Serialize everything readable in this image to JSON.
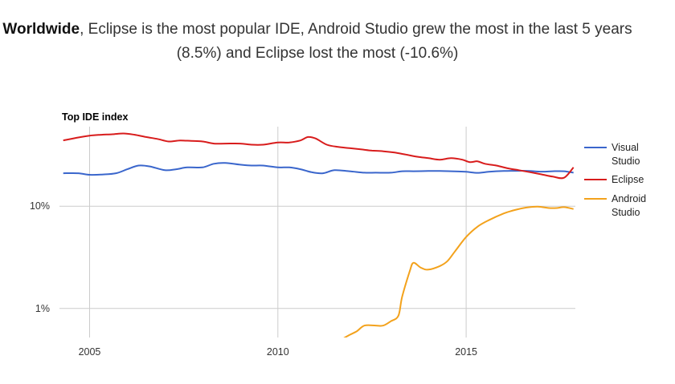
{
  "headline": {
    "bold": "Worldwide",
    "rest": ", Eclipse is the most popular IDE, Android Studio grew the most in the last 5 years (8.5%) and Eclipse lost the most (-10.6%)"
  },
  "chart_data": {
    "type": "line",
    "title": "Top IDE index",
    "xlabel": "",
    "ylabel": "",
    "yscale": "log",
    "grid": true,
    "legend_position": "right",
    "xlim": [
      2004.2,
      2017.9
    ],
    "ylim": [
      0.52,
      60
    ],
    "x_ticks": [
      2005,
      2010,
      2015
    ],
    "y_ticks": [
      {
        "value": 1,
        "label": "1%"
      },
      {
        "value": 10,
        "label": "10%"
      }
    ],
    "series": [
      {
        "name": "Visual Studio",
        "color": "#3a66cc",
        "points": [
          [
            2004.3,
            21
          ],
          [
            2004.7,
            21
          ],
          [
            2005.0,
            20.3
          ],
          [
            2005.3,
            20.4
          ],
          [
            2005.7,
            21
          ],
          [
            2006.0,
            23
          ],
          [
            2006.3,
            25
          ],
          [
            2006.6,
            24.5
          ],
          [
            2007.0,
            22.5
          ],
          [
            2007.3,
            23
          ],
          [
            2007.6,
            24
          ],
          [
            2008.0,
            24
          ],
          [
            2008.3,
            26
          ],
          [
            2008.6,
            26.5
          ],
          [
            2009.0,
            25.5
          ],
          [
            2009.3,
            25
          ],
          [
            2009.6,
            25
          ],
          [
            2010.0,
            24
          ],
          [
            2010.3,
            24
          ],
          [
            2010.6,
            23
          ],
          [
            2010.9,
            21.5
          ],
          [
            2011.2,
            21
          ],
          [
            2011.5,
            22.5
          ],
          [
            2011.9,
            22
          ],
          [
            2012.3,
            21.3
          ],
          [
            2012.6,
            21.3
          ],
          [
            2013.0,
            21.3
          ],
          [
            2013.3,
            22
          ],
          [
            2013.6,
            22
          ],
          [
            2014.0,
            22.1
          ],
          [
            2014.3,
            22.1
          ],
          [
            2014.6,
            22
          ],
          [
            2015.0,
            21.7
          ],
          [
            2015.3,
            21.2
          ],
          [
            2015.6,
            21.7
          ],
          [
            2016.0,
            22.1
          ],
          [
            2016.3,
            22.2
          ],
          [
            2016.6,
            22.2
          ],
          [
            2017.0,
            21.8
          ],
          [
            2017.3,
            22
          ],
          [
            2017.6,
            22
          ],
          [
            2017.85,
            21.3
          ]
        ]
      },
      {
        "name": "Eclipse",
        "color": "#d81c1c",
        "points": [
          [
            2004.3,
            44
          ],
          [
            2004.7,
            47
          ],
          [
            2005.0,
            49
          ],
          [
            2005.3,
            50
          ],
          [
            2005.6,
            50.5
          ],
          [
            2005.9,
            51.5
          ],
          [
            2006.2,
            50
          ],
          [
            2006.5,
            47.5
          ],
          [
            2006.8,
            45.5
          ],
          [
            2007.1,
            43
          ],
          [
            2007.4,
            44
          ],
          [
            2007.7,
            43.5
          ],
          [
            2008.0,
            43
          ],
          [
            2008.3,
            41
          ],
          [
            2008.6,
            41
          ],
          [
            2009.0,
            41
          ],
          [
            2009.3,
            40
          ],
          [
            2009.6,
            40
          ],
          [
            2010.0,
            42
          ],
          [
            2010.3,
            42
          ],
          [
            2010.6,
            44
          ],
          [
            2010.8,
            47.5
          ],
          [
            2011.0,
            46
          ],
          [
            2011.3,
            40
          ],
          [
            2011.6,
            38
          ],
          [
            2011.9,
            37
          ],
          [
            2012.2,
            36
          ],
          [
            2012.5,
            35
          ],
          [
            2012.8,
            34.5
          ],
          [
            2013.1,
            33.5
          ],
          [
            2013.4,
            32
          ],
          [
            2013.7,
            30.5
          ],
          [
            2014.0,
            29.5
          ],
          [
            2014.3,
            28.5
          ],
          [
            2014.6,
            29.5
          ],
          [
            2014.9,
            28.5
          ],
          [
            2015.1,
            27
          ],
          [
            2015.3,
            27.5
          ],
          [
            2015.5,
            26
          ],
          [
            2015.8,
            25
          ],
          [
            2016.1,
            23.5
          ],
          [
            2016.4,
            22.5
          ],
          [
            2016.7,
            21.5
          ],
          [
            2017.0,
            20.5
          ],
          [
            2017.3,
            19.5
          ],
          [
            2017.6,
            19
          ],
          [
            2017.85,
            24
          ]
        ]
      },
      {
        "name": "Android Studio",
        "color": "#f3a21c",
        "points": [
          [
            2011.7,
            0.5
          ],
          [
            2011.9,
            0.55
          ],
          [
            2012.1,
            0.6
          ],
          [
            2012.3,
            0.68
          ],
          [
            2012.6,
            0.68
          ],
          [
            2012.8,
            0.68
          ],
          [
            2013.0,
            0.75
          ],
          [
            2013.2,
            0.85
          ],
          [
            2013.3,
            1.3
          ],
          [
            2013.5,
            2.3
          ],
          [
            2013.6,
            2.8
          ],
          [
            2013.8,
            2.5
          ],
          [
            2014.0,
            2.4
          ],
          [
            2014.3,
            2.6
          ],
          [
            2014.5,
            2.9
          ],
          [
            2014.7,
            3.6
          ],
          [
            2015.0,
            5.0
          ],
          [
            2015.3,
            6.3
          ],
          [
            2015.6,
            7.3
          ],
          [
            2016.0,
            8.5
          ],
          [
            2016.3,
            9.2
          ],
          [
            2016.6,
            9.7
          ],
          [
            2016.9,
            9.9
          ],
          [
            2017.2,
            9.6
          ],
          [
            2017.4,
            9.6
          ],
          [
            2017.6,
            9.8
          ],
          [
            2017.85,
            9.4
          ]
        ]
      }
    ]
  },
  "legend": [
    {
      "label": "Visual Studio",
      "color": "#3a66cc"
    },
    {
      "label": "Eclipse",
      "color": "#d81c1c"
    },
    {
      "label": "Android Studio",
      "color": "#f3a21c"
    }
  ]
}
